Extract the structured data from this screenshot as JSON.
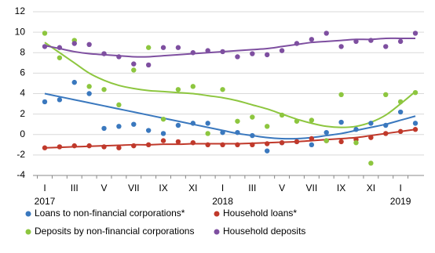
{
  "chart_data": {
    "type": "scatter-trend",
    "categories": [
      "I",
      null,
      "III",
      null,
      "V",
      null,
      "VII",
      null,
      "IX",
      null,
      "XI",
      null,
      "I",
      null,
      "III",
      null,
      "V",
      null,
      "VII",
      null,
      "IX",
      null,
      "XI",
      null,
      "I",
      null
    ],
    "years": [
      "2017",
      null,
      null,
      null,
      null,
      null,
      null,
      null,
      null,
      null,
      null,
      null,
      "2018",
      null,
      null,
      null,
      null,
      null,
      null,
      null,
      null,
      null,
      null,
      null,
      "2019",
      null
    ],
    "ylim": [
      -4,
      12
    ],
    "yticks": [
      -4,
      -2,
      0,
      2,
      4,
      6,
      8,
      10,
      12
    ],
    "grid": true,
    "series": [
      {
        "name": "Loans to non-financial corporations*",
        "color": "#3a78be",
        "values": [
          3.2,
          3.4,
          5.1,
          4.0,
          0.6,
          0.8,
          1.0,
          0.4,
          0.1,
          0.9,
          1.1,
          1.1,
          0.2,
          0.2,
          -0.1,
          -1.6,
          -0.8,
          -0.7,
          -1.0,
          0.2,
          1.2,
          0.5,
          1.1,
          0.9,
          2.2,
          1.1
        ],
        "trend": [
          4.0,
          3.7,
          3.4,
          3.1,
          2.8,
          2.5,
          2.2,
          1.9,
          1.6,
          1.3,
          1.0,
          0.7,
          0.4,
          0.1,
          -0.1,
          -0.3,
          -0.4,
          -0.4,
          -0.3,
          -0.1,
          0.1,
          0.4,
          0.7,
          1.0,
          1.4,
          1.8
        ]
      },
      {
        "name": "Household loans*",
        "color": "#c0392b",
        "values": [
          -1.3,
          -1.2,
          -1.1,
          -1.1,
          -1.2,
          -1.3,
          -1.1,
          -1.0,
          -0.6,
          -0.7,
          -0.8,
          -1.0,
          -1.0,
          -1.0,
          -1.0,
          -0.9,
          -0.8,
          -0.7,
          -0.4,
          -0.6,
          -0.7,
          -0.5,
          -0.3,
          0.1,
          0.3,
          0.5
        ],
        "trend": [
          -1.3,
          -1.25,
          -1.2,
          -1.15,
          -1.1,
          -1.05,
          -1.0,
          -1.0,
          -0.95,
          -0.95,
          -0.9,
          -0.9,
          -0.9,
          -0.9,
          -0.85,
          -0.8,
          -0.75,
          -0.7,
          -0.6,
          -0.5,
          -0.4,
          -0.3,
          -0.1,
          0.1,
          0.3,
          0.5
        ]
      },
      {
        "name": "Deposits by non-financial corporations",
        "color": "#8dc63f",
        "values": [
          9.9,
          7.5,
          9.2,
          4.7,
          4.4,
          2.9,
          6.3,
          8.5,
          1.5,
          4.4,
          4.7,
          0.1,
          4.4,
          1.3,
          1.7,
          0.8,
          1.9,
          1.3,
          1.4,
          -0.6,
          3.9,
          -0.8,
          -2.8,
          3.9,
          3.2,
          4.1
        ],
        "trend": [
          9.0,
          8.0,
          7.0,
          6.0,
          5.3,
          4.8,
          4.5,
          4.3,
          4.2,
          4.1,
          4.0,
          3.8,
          3.6,
          3.3,
          2.9,
          2.5,
          2.0,
          1.5,
          1.1,
          0.8,
          0.7,
          0.8,
          1.2,
          1.9,
          3.0,
          4.2
        ]
      },
      {
        "name": "Household deposits",
        "color": "#7e4fa0",
        "values": [
          8.6,
          8.5,
          8.9,
          8.8,
          7.9,
          7.6,
          6.9,
          6.8,
          8.5,
          8.5,
          8.0,
          8.2,
          8.1,
          7.6,
          7.9,
          7.8,
          8.2,
          8.9,
          9.3,
          9.9,
          8.6,
          9.1,
          9.2,
          8.6,
          9.1,
          9.9
        ],
        "trend": [
          8.7,
          8.4,
          8.1,
          7.9,
          7.8,
          7.7,
          7.6,
          7.6,
          7.7,
          7.8,
          7.9,
          8.0,
          8.1,
          8.2,
          8.3,
          8.4,
          8.6,
          8.8,
          9.0,
          9.1,
          9.2,
          9.3,
          9.3,
          9.4,
          9.4,
          9.4
        ]
      }
    ]
  }
}
